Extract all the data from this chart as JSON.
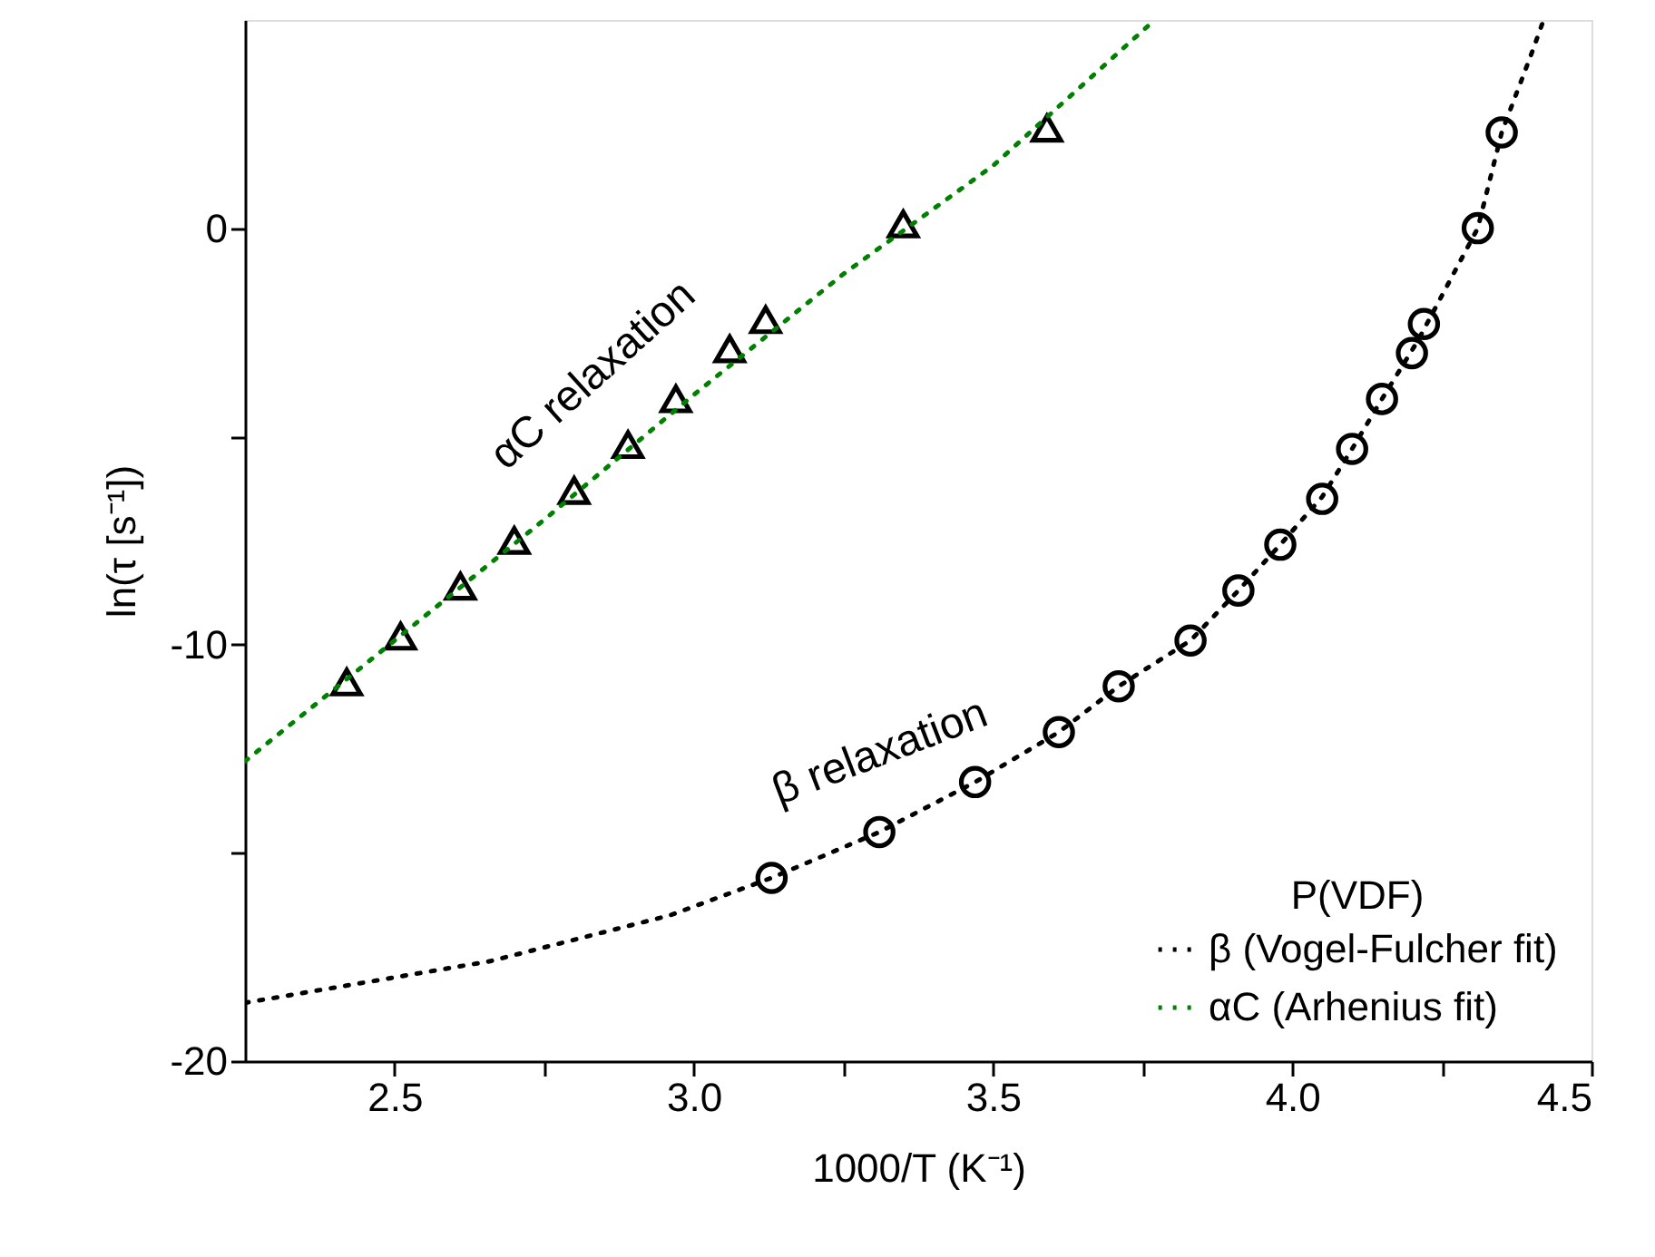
{
  "chart_data": {
    "type": "scatter",
    "xlabel": "1000/T (K⁻¹)",
    "ylabel": "ln(τ [s⁻¹])",
    "legend_title": "P(VDF)",
    "legend": "bottom right",
    "grid": false,
    "xlim": [
      2.25,
      4.5
    ],
    "xticks": [
      2.5,
      {
        "value": 3,
        "label": "3.0"
      },
      3.5,
      {
        "value": 4,
        "label": "4.0"
      },
      4.5,
      {
        "value": 2.75,
        "label": null
      },
      {
        "value": 3.25,
        "label": null
      },
      {
        "value": 3.75,
        "label": null
      },
      {
        "value": 4.25,
        "label": null
      }
    ],
    "ylim": [
      -20,
      5
    ],
    "yticks": [
      -20,
      -10,
      0,
      {
        "value": -15,
        "label": null
      },
      {
        "value": -5,
        "label": null
      }
    ],
    "annotations": [
      "αC relaxation",
      "β relaxation"
    ],
    "series": [
      {
        "marker": "triangle",
        "color": "#000000",
        "x": [
          2.42,
          2.51,
          2.61,
          2.7,
          2.8,
          2.89,
          2.97,
          3.06,
          3.12,
          3.35,
          3.59
        ],
        "values": [
          -10.9,
          -9.8,
          -8.6,
          -7.5,
          -6.3,
          -5.2,
          -4.1,
          -2.9,
          -2.2,
          0.1,
          2.4
        ]
      },
      {
        "marker": "circle",
        "color": "#000000",
        "x": [
          3.13,
          3.31,
          3.47,
          3.61,
          3.71,
          3.83,
          3.91,
          3.98,
          4.05,
          4.1,
          4.15,
          4.2,
          4.22,
          4.31,
          4.35
        ],
        "values": [
          -15.6,
          -14.5,
          -13.3,
          -12.1,
          -11.0,
          -9.9,
          -8.7,
          -7.6,
          -6.5,
          -5.3,
          -4.1,
          -3.0,
          -2.3,
          0.0,
          2.3
        ]
      },
      {
        "type": "line",
        "name": "β (Vogel-Fulcher fit)",
        "color": "#000000",
        "line_style": "dotted",
        "x": [
          2.25,
          2.66,
          2.96,
          3.13,
          3.31,
          3.47,
          3.61,
          3.71,
          3.83,
          3.91,
          3.98,
          4.05,
          4.1,
          4.15,
          4.21,
          4.31,
          4.35,
          4.4,
          4.42
        ],
        "values": [
          -18.6,
          -17.6,
          -16.5,
          -15.6,
          -14.5,
          -13.3,
          -12.1,
          -11.0,
          -9.9,
          -8.7,
          -7.6,
          -6.45,
          -5.3,
          -4.1,
          -2.7,
          0.0,
          2.3,
          4.2,
          5.0
        ]
      },
      {
        "type": "line",
        "name": "αC (Arhenius fit)",
        "color": "#008000",
        "line_style": "dotted",
        "x": [
          2.25,
          2.5,
          2.75,
          3.0,
          3.25,
          3.5,
          3.77
        ],
        "values": [
          -12.8,
          -9.9,
          -7.0,
          -4.0,
          -1.1,
          1.5,
          5.0
        ]
      }
    ]
  }
}
